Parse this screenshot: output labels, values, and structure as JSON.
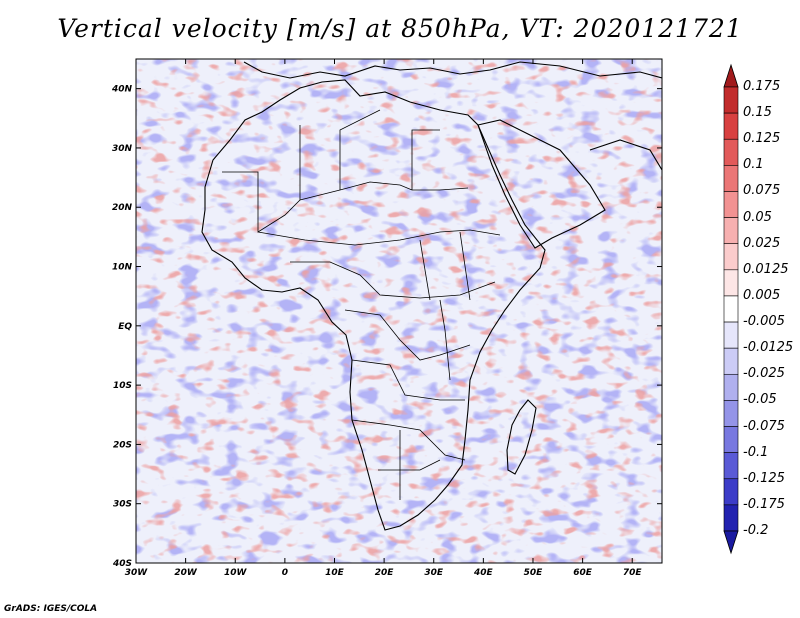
{
  "title": "Vertical velocity [m/s] at 850hPa, VT: 2020121721",
  "credit": "GrADS: IGES/COLA",
  "map": {
    "lon_range": [
      -30,
      76
    ],
    "lat_range": [
      -40,
      45
    ],
    "lat_ticks": [
      {
        "value": 40,
        "label": "40N"
      },
      {
        "value": 30,
        "label": "30N"
      },
      {
        "value": 20,
        "label": "20N"
      },
      {
        "value": 10,
        "label": "10N"
      },
      {
        "value": 0,
        "label": "EQ"
      },
      {
        "value": -10,
        "label": "10S"
      },
      {
        "value": -20,
        "label": "20S"
      },
      {
        "value": -30,
        "label": "30S"
      },
      {
        "value": -40,
        "label": "40S"
      }
    ],
    "lon_ticks": [
      {
        "value": -30,
        "label": "30W"
      },
      {
        "value": -20,
        "label": "20W"
      },
      {
        "value": -10,
        "label": "10W"
      },
      {
        "value": 0,
        "label": "0"
      },
      {
        "value": 10,
        "label": "10E"
      },
      {
        "value": 20,
        "label": "20E"
      },
      {
        "value": 30,
        "label": "30E"
      },
      {
        "value": 40,
        "label": "40E"
      },
      {
        "value": 50,
        "label": "50E"
      },
      {
        "value": 60,
        "label": "60E"
      },
      {
        "value": 70,
        "label": "70E"
      }
    ]
  },
  "colorbar": {
    "levels": [
      {
        "label": "0.175",
        "color": "#a11a1c"
      },
      {
        "label": "0.15",
        "color": "#c22c2c"
      },
      {
        "label": "0.125",
        "color": "#d84040"
      },
      {
        "label": "0.1",
        "color": "#e25a5a"
      },
      {
        "label": "0.075",
        "color": "#eb7676"
      },
      {
        "label": "0.05",
        "color": "#f29292"
      },
      {
        "label": "0.025",
        "color": "#f7b0b0"
      },
      {
        "label": "0.0125",
        "color": "#fbcccc"
      },
      {
        "label": "0.005",
        "color": "#fde6e6"
      },
      {
        "label": "-0.005",
        "color": "#ffffff"
      },
      {
        "label": "-0.0125",
        "color": "#e6e6fb"
      },
      {
        "label": "-0.025",
        "color": "#ccccf6"
      },
      {
        "label": "-0.05",
        "color": "#b0b0ef"
      },
      {
        "label": "-0.075",
        "color": "#9494e8"
      },
      {
        "label": "-0.1",
        "color": "#7878e0"
      },
      {
        "label": "-0.125",
        "color": "#5a5ad6"
      },
      {
        "label": "-0.175",
        "color": "#3c3cc8"
      },
      {
        "label": "-0.2",
        "color": "#2222b0"
      }
    ],
    "top_color": "#a11a1c",
    "bottom_color": "#1a1aa0"
  }
}
